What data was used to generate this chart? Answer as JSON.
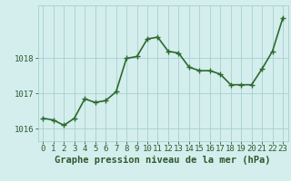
{
  "x": [
    0,
    1,
    2,
    3,
    4,
    5,
    6,
    7,
    8,
    9,
    10,
    11,
    12,
    13,
    14,
    15,
    16,
    17,
    18,
    19,
    20,
    21,
    22,
    23
  ],
  "y": [
    1016.3,
    1016.25,
    1016.1,
    1016.3,
    1016.85,
    1016.75,
    1016.8,
    1017.05,
    1018.0,
    1018.05,
    1018.55,
    1018.6,
    1018.2,
    1018.15,
    1017.75,
    1017.65,
    1017.65,
    1017.55,
    1017.25,
    1017.25,
    1017.25,
    1017.7,
    1018.2,
    1019.15
  ],
  "line_color": "#2d6a2d",
  "marker": "+",
  "marker_size": 4,
  "linewidth": 1.2,
  "bg_color": "#d4eeee",
  "grid_color": "#a8cece",
  "tick_color": "#2d5a2d",
  "xlabel": "Graphe pression niveau de la mer (hPa)",
  "xlabel_fontsize": 7.5,
  "xlabel_fontweight": "bold",
  "xlabel_color": "#2d5a2d",
  "ytick_labels": [
    "1016",
    "1017",
    "1018"
  ],
  "ytick_values": [
    1016,
    1017,
    1018
  ],
  "ylim": [
    1015.65,
    1019.5
  ],
  "xlim": [
    -0.5,
    23.5
  ],
  "xtick_labels": [
    "0",
    "1",
    "2",
    "3",
    "4",
    "5",
    "6",
    "7",
    "8",
    "9",
    "10",
    "11",
    "12",
    "13",
    "14",
    "15",
    "16",
    "17",
    "18",
    "19",
    "20",
    "21",
    "22",
    "23"
  ],
  "tick_fontsize": 6.5
}
